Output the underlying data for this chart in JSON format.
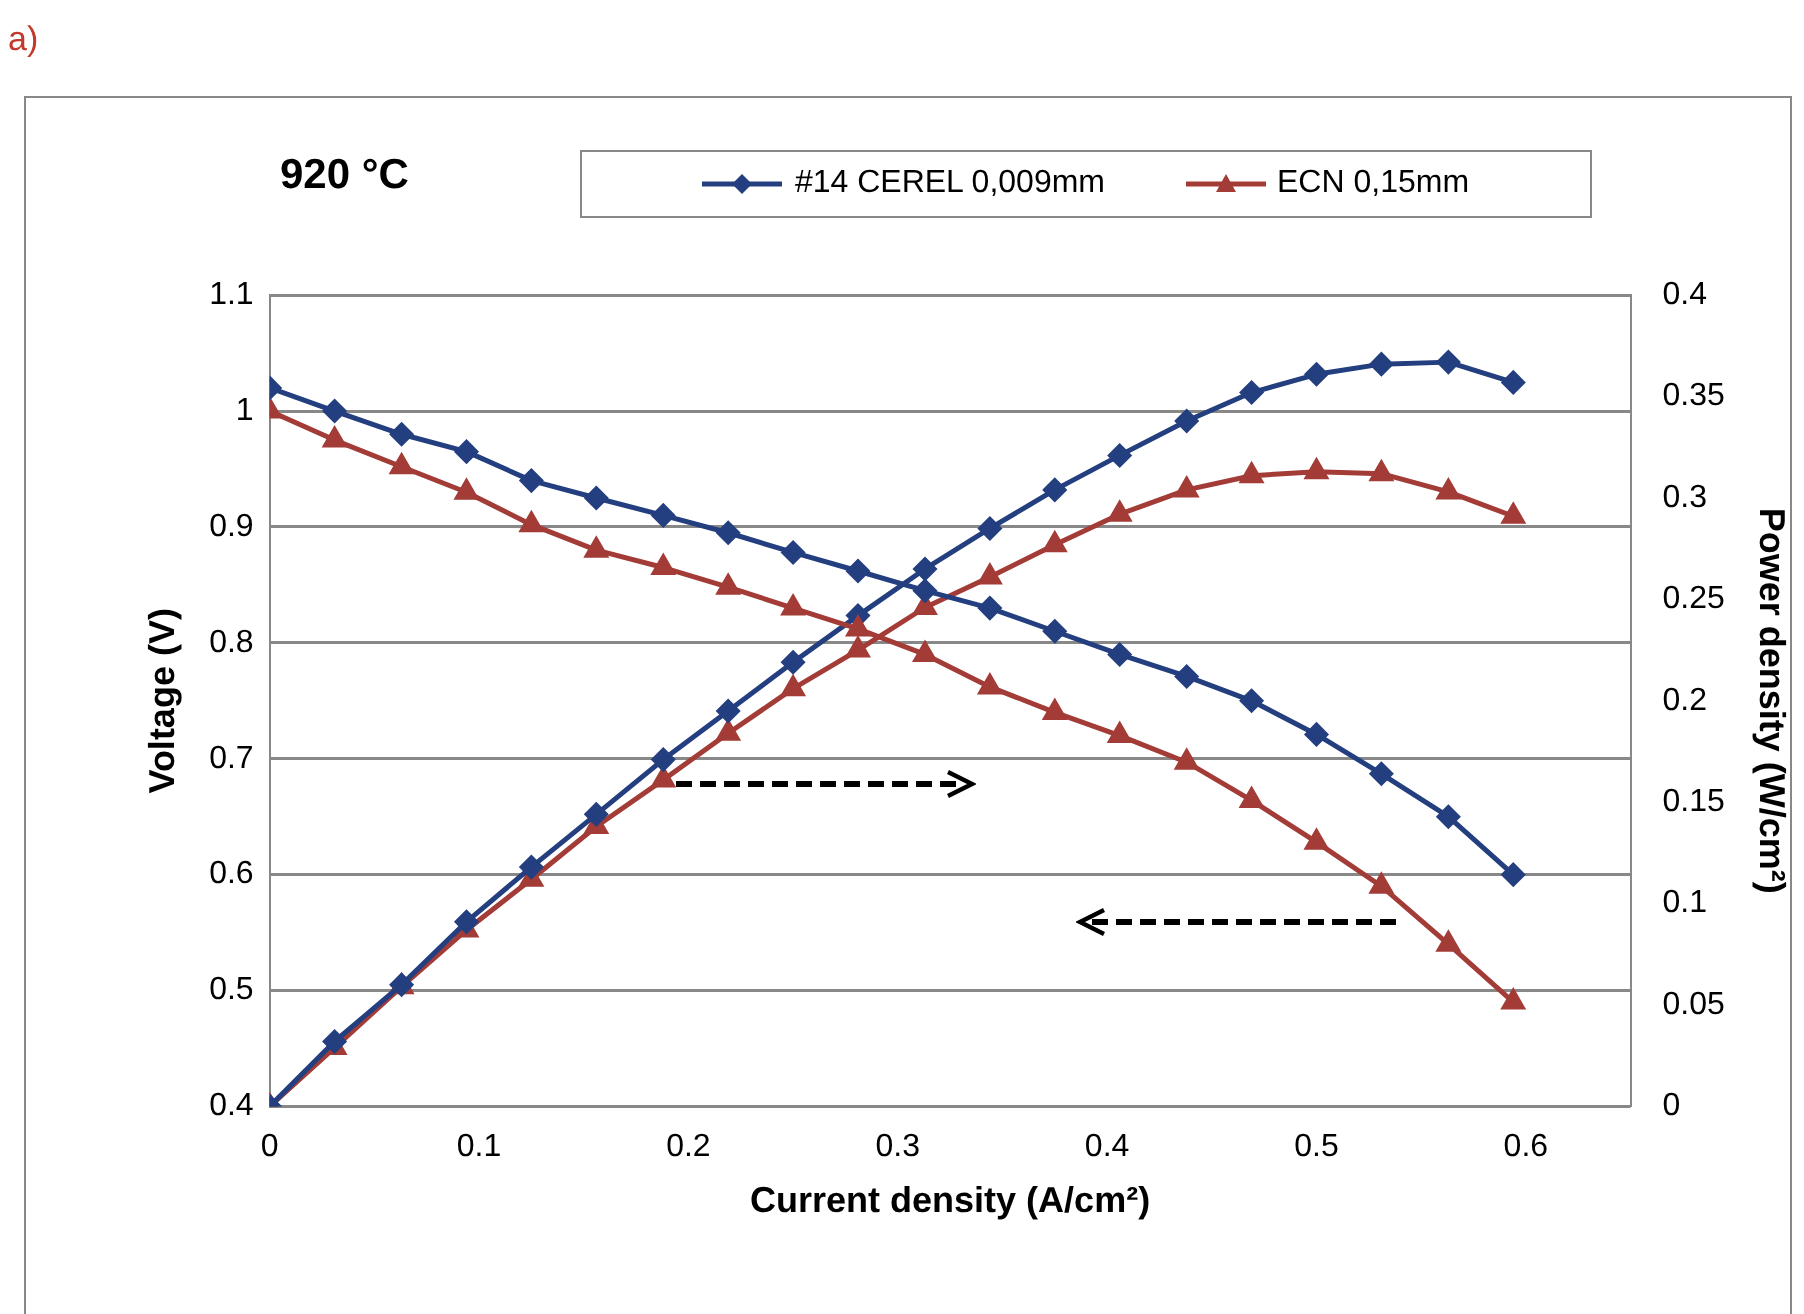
{
  "chart_data": {
    "type": "line",
    "title": "920 °C",
    "annotations": [
      "a)"
    ],
    "xlabel": "Current density (A/cm²)",
    "ylabel": "Voltage (V)",
    "y2label": "Power density (W/cm²)",
    "x": [
      0,
      0.031,
      0.063,
      0.094,
      0.125,
      0.156,
      0.188,
      0.219,
      0.25,
      0.281,
      0.313,
      0.344,
      0.375,
      0.406,
      0.438,
      0.469,
      0.5,
      0.531,
      0.563,
      0.594
    ],
    "xlim": [
      0,
      0.65
    ],
    "xticks": [
      0,
      0.1,
      0.2,
      0.3,
      0.4,
      0.5,
      0.6
    ],
    "ylim": [
      0.4,
      1.1
    ],
    "yticks": [
      0.4,
      0.5,
      0.6,
      0.7,
      0.8,
      0.9,
      1,
      1.1
    ],
    "y2lim": [
      0,
      0.4
    ],
    "y2ticks": [
      0,
      0.05,
      0.1,
      0.15,
      0.2,
      0.25,
      0.3,
      0.35,
      0.4
    ],
    "grid": "y",
    "legend": "top",
    "line_style": "solid",
    "series": [
      {
        "name": "#14 CEREL 0,009mm",
        "color": "#243f7f",
        "marker": "diamond",
        "values": [
          1.02,
          1.0,
          0.98,
          0.965,
          0.94,
          0.925,
          0.91,
          0.895,
          0.878,
          0.862,
          0.845,
          0.83,
          0.81,
          0.79,
          0.771,
          0.75,
          0.721,
          0.687,
          0.65,
          0.6
        ]
      },
      {
        "name": "ECN 0,15mm",
        "color": "#a33b37",
        "marker": "triangle",
        "values": [
          1.0,
          0.975,
          0.952,
          0.93,
          0.902,
          0.88,
          0.865,
          0.848,
          0.83,
          0.812,
          0.79,
          0.762,
          0.74,
          0.72,
          0.697,
          0.664,
          0.628,
          0.59,
          0.54,
          0.49
        ]
      },
      {
        "color": "#243f7f",
        "marker": "diamond",
        "axis": "y2",
        "values": [
          0,
          0.032,
          0.06,
          0.091,
          0.118,
          0.144,
          0.171,
          0.195,
          0.219,
          0.242,
          0.265,
          0.285,
          0.304,
          0.321,
          0.338,
          0.352,
          0.361,
          0.366,
          0.367,
          0.357
        ]
      },
      {
        "color": "#a33b37",
        "marker": "triangle",
        "axis": "y2",
        "values": [
          0,
          0.029,
          0.059,
          0.087,
          0.112,
          0.138,
          0.161,
          0.184,
          0.206,
          0.225,
          0.246,
          0.261,
          0.277,
          0.292,
          0.304,
          0.311,
          0.313,
          0.312,
          0.303,
          0.291
        ]
      }
    ]
  }
}
